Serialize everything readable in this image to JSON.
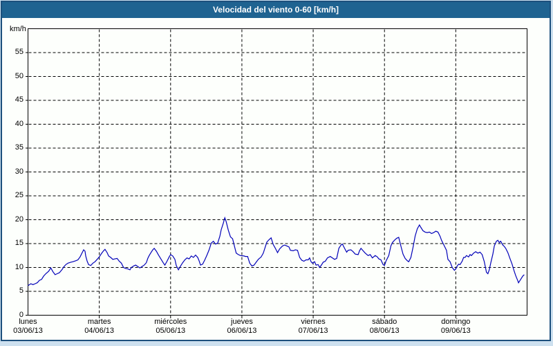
{
  "window": {
    "title": "Velocidad del viento 0-60 [km/h]"
  },
  "colors": {
    "frame_background": "#cde0ef",
    "window_border": "#1c4f7c",
    "title_bar_background": "#1f6391",
    "title_text": "#ffffff",
    "content_background": "#fdfffc",
    "plot_border": "#000000",
    "grid": "#000000",
    "line": "#0000b8",
    "labels": "#000000"
  },
  "chart_data": {
    "type": "line",
    "title": "Velocidad del viento 0-60 [km/h]",
    "ylabel": "km/h",
    "ylim": [
      0,
      60
    ],
    "y_tick_step": 5,
    "y_tick_labels": [
      "0",
      "5",
      "10",
      "15",
      "20",
      "25",
      "30",
      "35",
      "40",
      "45",
      "50",
      "55"
    ],
    "grid": "dashed",
    "legend": "none",
    "x_axis_days": [
      {
        "day": "lunes",
        "date": "03/06/13"
      },
      {
        "day": "martes",
        "date": "04/06/13"
      },
      {
        "day": "miércoles",
        "date": "05/06/13"
      },
      {
        "day": "jueves",
        "date": "06/06/13"
      },
      {
        "day": "viernes",
        "date": "07/06/13"
      },
      {
        "day": "sábado",
        "date": "08/06/13"
      },
      {
        "day": "domingo",
        "date": "09/06/13"
      }
    ],
    "series": [
      {
        "name": "Velocidad del viento",
        "color": "#0000b8",
        "x_unit": "days_from_monday_start",
        "y_unit": "km/h",
        "points": [
          [
            0,
            6.2
          ],
          [
            0.04,
            6.6
          ],
          [
            0.07,
            6.4
          ],
          [
            0.1,
            6.6
          ],
          [
            0.13,
            6.8
          ],
          [
            0.16,
            7.3
          ],
          [
            0.19,
            7.5
          ],
          [
            0.22,
            8.2
          ],
          [
            0.25,
            8.7
          ],
          [
            0.29,
            9.2
          ],
          [
            0.32,
            9.9
          ],
          [
            0.35,
            9.1
          ],
          [
            0.38,
            8.5
          ],
          [
            0.41,
            8.7
          ],
          [
            0.44,
            8.9
          ],
          [
            0.48,
            9.6
          ],
          [
            0.5,
            10.1
          ],
          [
            0.53,
            10.6
          ],
          [
            0.56,
            10.9
          ],
          [
            0.6,
            11.1
          ],
          [
            0.63,
            11.2
          ],
          [
            0.67,
            11.4
          ],
          [
            0.7,
            11.6
          ],
          [
            0.73,
            12.2
          ],
          [
            0.76,
            13.1
          ],
          [
            0.78,
            13.7
          ],
          [
            0.8,
            13.4
          ],
          [
            0.81,
            12.4
          ],
          [
            0.83,
            11.3
          ],
          [
            0.85,
            10.6
          ],
          [
            0.88,
            10.4
          ],
          [
            0.91,
            10.9
          ],
          [
            0.94,
            11.2
          ],
          [
            0.97,
            11.7
          ],
          [
            1,
            12.2
          ],
          [
            1.03,
            12.9
          ],
          [
            1.06,
            13.5
          ],
          [
            1.08,
            13.8
          ],
          [
            1.11,
            13.1
          ],
          [
            1.13,
            12.4
          ],
          [
            1.16,
            12.1
          ],
          [
            1.19,
            11.7
          ],
          [
            1.22,
            11.8
          ],
          [
            1.25,
            11.9
          ],
          [
            1.28,
            11.3
          ],
          [
            1.31,
            10.9
          ],
          [
            1.34,
            10
          ],
          [
            1.37,
            9.8
          ],
          [
            1.4,
            9.7
          ],
          [
            1.43,
            9.5
          ],
          [
            1.45,
            10
          ],
          [
            1.48,
            10.3
          ],
          [
            1.51,
            10.5
          ],
          [
            1.54,
            10.2
          ],
          [
            1.57,
            9.9
          ],
          [
            1.6,
            10.2
          ],
          [
            1.63,
            10.5
          ],
          [
            1.66,
            11
          ],
          [
            1.68,
            11.9
          ],
          [
            1.7,
            12.5
          ],
          [
            1.72,
            13
          ],
          [
            1.75,
            13.7
          ],
          [
            1.77,
            14
          ],
          [
            1.8,
            13.4
          ],
          [
            1.83,
            12.6
          ],
          [
            1.86,
            11.9
          ],
          [
            1.9,
            10.9
          ],
          [
            1.92,
            10.5
          ],
          [
            1.95,
            11.3
          ],
          [
            1.98,
            12.2
          ],
          [
            2,
            12.7
          ],
          [
            2.03,
            12.4
          ],
          [
            2.06,
            11.7
          ],
          [
            2.08,
            10.4
          ],
          [
            2.11,
            9.5
          ],
          [
            2.14,
            10.3
          ],
          [
            2.17,
            11
          ],
          [
            2.2,
            11.6
          ],
          [
            2.23,
            12
          ],
          [
            2.26,
            11.8
          ],
          [
            2.29,
            12.4
          ],
          [
            2.32,
            12.1
          ],
          [
            2.35,
            12.6
          ],
          [
            2.38,
            12.1
          ],
          [
            2.4,
            11.4
          ],
          [
            2.42,
            10.5
          ],
          [
            2.45,
            10.7
          ],
          [
            2.48,
            11.6
          ],
          [
            2.51,
            12.6
          ],
          [
            2.54,
            13.7
          ],
          [
            2.57,
            15.1
          ],
          [
            2.6,
            15.5
          ],
          [
            2.63,
            14.9
          ],
          [
            2.66,
            15.1
          ],
          [
            2.69,
            16.5
          ],
          [
            2.71,
            17.9
          ],
          [
            2.74,
            19.3
          ],
          [
            2.76,
            20.4
          ],
          [
            2.78,
            19.6
          ],
          [
            2.81,
            17.8
          ],
          [
            2.84,
            16.4
          ],
          [
            2.87,
            16
          ],
          [
            2.9,
            14.2
          ],
          [
            2.92,
            13
          ],
          [
            2.95,
            12.7
          ],
          [
            2.98,
            12.5
          ],
          [
            3.03,
            12.4
          ],
          [
            3.05,
            12.3
          ],
          [
            3.08,
            12.3
          ],
          [
            3.11,
            10.9
          ],
          [
            3.14,
            10.3
          ],
          [
            3.17,
            10.5
          ],
          [
            3.2,
            11.1
          ],
          [
            3.23,
            11.7
          ],
          [
            3.27,
            12.2
          ],
          [
            3.3,
            13
          ],
          [
            3.33,
            14.4
          ],
          [
            3.35,
            15.3
          ],
          [
            3.38,
            15.8
          ],
          [
            3.41,
            16.2
          ],
          [
            3.44,
            14.8
          ],
          [
            3.47,
            14
          ],
          [
            3.5,
            13.1
          ],
          [
            3.53,
            13.9
          ],
          [
            3.57,
            14.5
          ],
          [
            3.6,
            14.7
          ],
          [
            3.63,
            14.5
          ],
          [
            3.66,
            14.3
          ],
          [
            3.68,
            13.6
          ],
          [
            3.72,
            13.5
          ],
          [
            3.75,
            13.7
          ],
          [
            3.78,
            13.6
          ],
          [
            3.81,
            12.1
          ],
          [
            3.84,
            11.5
          ],
          [
            3.87,
            11.3
          ],
          [
            3.9,
            11.6
          ],
          [
            3.93,
            11.6
          ],
          [
            3.95,
            12
          ],
          [
            3.97,
            11.2
          ],
          [
            3.99,
            10.9
          ],
          [
            4.02,
            11.2
          ],
          [
            4.04,
            10.5
          ],
          [
            4.07,
            10.6
          ],
          [
            4.09,
            10
          ],
          [
            4.12,
            10.6
          ],
          [
            4.14,
            11.1
          ],
          [
            4.17,
            11.3
          ],
          [
            4.2,
            12
          ],
          [
            4.24,
            12.3
          ],
          [
            4.27,
            12
          ],
          [
            4.3,
            11.7
          ],
          [
            4.33,
            11.9
          ],
          [
            4.36,
            14
          ],
          [
            4.39,
            14.7
          ],
          [
            4.41,
            14.9
          ],
          [
            4.44,
            14
          ],
          [
            4.47,
            13.2
          ],
          [
            4.49,
            13.6
          ],
          [
            4.53,
            13.7
          ],
          [
            4.56,
            13.3
          ],
          [
            4.59,
            12.8
          ],
          [
            4.63,
            12.7
          ],
          [
            4.65,
            13.5
          ],
          [
            4.67,
            14
          ],
          [
            4.7,
            13.5
          ],
          [
            4.73,
            13
          ],
          [
            4.77,
            12.5
          ],
          [
            4.8,
            12.7
          ],
          [
            4.83,
            12
          ],
          [
            4.87,
            12.5
          ],
          [
            4.9,
            12.2
          ],
          [
            4.92,
            11.8
          ],
          [
            4.95,
            11.6
          ],
          [
            4.98,
            10.6
          ],
          [
            5,
            10.4
          ],
          [
            5.02,
            11.3
          ],
          [
            5.06,
            12.5
          ],
          [
            5.09,
            14.5
          ],
          [
            5.11,
            15.2
          ],
          [
            5.14,
            15.7
          ],
          [
            5.17,
            16.1
          ],
          [
            5.2,
            16.3
          ],
          [
            5.23,
            14.5
          ],
          [
            5.26,
            12.8
          ],
          [
            5.29,
            11.9
          ],
          [
            5.32,
            11.4
          ],
          [
            5.34,
            11.2
          ],
          [
            5.37,
            12.1
          ],
          [
            5.4,
            14.2
          ],
          [
            5.43,
            16.6
          ],
          [
            5.46,
            18.1
          ],
          [
            5.49,
            18.9
          ],
          [
            5.51,
            18.4
          ],
          [
            5.54,
            17.7
          ],
          [
            5.57,
            17.4
          ],
          [
            5.6,
            17.3
          ],
          [
            5.63,
            17.4
          ],
          [
            5.66,
            17.1
          ],
          [
            5.69,
            17.3
          ],
          [
            5.72,
            17.6
          ],
          [
            5.75,
            17.4
          ],
          [
            5.78,
            16.5
          ],
          [
            5.8,
            15.7
          ],
          [
            5.83,
            14.8
          ],
          [
            5.87,
            13.6
          ],
          [
            5.89,
            11.7
          ],
          [
            5.92,
            11.2
          ],
          [
            5.95,
            10
          ],
          [
            5.98,
            9.4
          ],
          [
            6,
            9.7
          ],
          [
            6.02,
            10.3
          ],
          [
            6.04,
            10.7
          ],
          [
            6.06,
            10.6
          ],
          [
            6.09,
            11.3
          ],
          [
            6.11,
            12.1
          ],
          [
            6.13,
            12.1
          ],
          [
            6.15,
            12.5
          ],
          [
            6.18,
            12.2
          ],
          [
            6.2,
            12.7
          ],
          [
            6.22,
            12.5
          ],
          [
            6.25,
            13
          ],
          [
            6.28,
            13.3
          ],
          [
            6.31,
            13
          ],
          [
            6.34,
            13.2
          ],
          [
            6.37,
            12.7
          ],
          [
            6.4,
            11.2
          ],
          [
            6.43,
            9
          ],
          [
            6.45,
            8.7
          ],
          [
            6.47,
            9.5
          ],
          [
            6.49,
            10.9
          ],
          [
            6.52,
            12.8
          ],
          [
            6.54,
            14.5
          ],
          [
            6.57,
            15.5
          ],
          [
            6.59,
            15.7
          ],
          [
            6.61,
            15.2
          ],
          [
            6.63,
            15.5
          ],
          [
            6.66,
            14.7
          ],
          [
            6.68,
            14.4
          ],
          [
            6.7,
            14
          ],
          [
            6.73,
            13.1
          ],
          [
            6.76,
            11.9
          ],
          [
            6.79,
            10.7
          ],
          [
            6.82,
            9.2
          ],
          [
            6.84,
            8.3
          ],
          [
            6.87,
            7.2
          ],
          [
            6.88,
            6.8
          ],
          [
            6.91,
            7.5
          ],
          [
            6.94,
            8.2
          ],
          [
            6.96,
            8.5
          ]
        ]
      }
    ]
  }
}
